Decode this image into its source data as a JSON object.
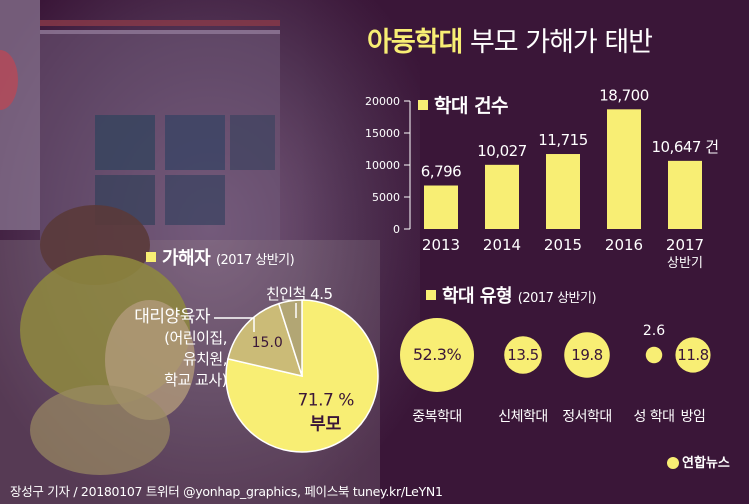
{
  "title": {
    "highlight": "아동학대",
    "rest": "부모 가해가 태반"
  },
  "sections": {
    "cases": {
      "title": "학대 건수"
    },
    "perpetrator": {
      "title": "가해자",
      "subtitle": "(2017 상반기)"
    },
    "types": {
      "title": "학대 유형",
      "subtitle": "(2017 상반기)"
    }
  },
  "footer": {
    "credit": "장성구 기자 / 20180107",
    "social": "트위터 @yonhap_graphics, 페이스북 tuney.kr/LeYN1"
  },
  "logo": {
    "text": "연합뉴스"
  },
  "colors": {
    "bar": "#f8ee74",
    "accent": "#f8ee74",
    "background": "#3a1638",
    "pie_secondary": "#cbbb77"
  },
  "chart_data": [
    {
      "type": "bar",
      "categories": [
        "2013",
        "2014",
        "2015",
        "2016",
        "2017 상반기"
      ],
      "category_lines": [
        [
          "2013"
        ],
        [
          "2014"
        ],
        [
          "2015"
        ],
        [
          "2016"
        ],
        [
          "2017",
          "상반기"
        ]
      ],
      "values": [
        6796,
        10027,
        11715,
        18700,
        10647
      ],
      "value_labels": [
        "6,796",
        "10,027",
        "11,715",
        "18,700",
        "10,647 건"
      ],
      "title": "학대 건수",
      "yticks": [
        "0",
        "5000",
        "10000",
        "15000",
        "20000"
      ],
      "ylim": [
        0,
        20000
      ],
      "grid": false
    },
    {
      "type": "pie",
      "title": "가해자",
      "subtitle": "(2017 상반기)",
      "slices": [
        {
          "label_lines": [
            "부모"
          ],
          "value": 71.7,
          "value_label": "71.7 %"
        },
        {
          "label_lines": [
            "대리양육자",
            "(어린이집,",
            "유치원,",
            "학교 교사)"
          ],
          "value": 15.0,
          "value_label": "15.0"
        },
        {
          "label_lines": [
            "친인척"
          ],
          "value": 4.5,
          "value_label": "4.5"
        }
      ]
    },
    {
      "type": "bubble",
      "title": "학대 유형",
      "subtitle": "(2017 상반기)",
      "categories": [
        "중복학대",
        "신체학대",
        "정서학대",
        "성 학대",
        "방임"
      ],
      "values": [
        52.3,
        13.5,
        19.8,
        2.6,
        11.8
      ],
      "value_labels": [
        "52.3%",
        "13.5",
        "19.8",
        "2.6",
        "11.8"
      ]
    }
  ]
}
